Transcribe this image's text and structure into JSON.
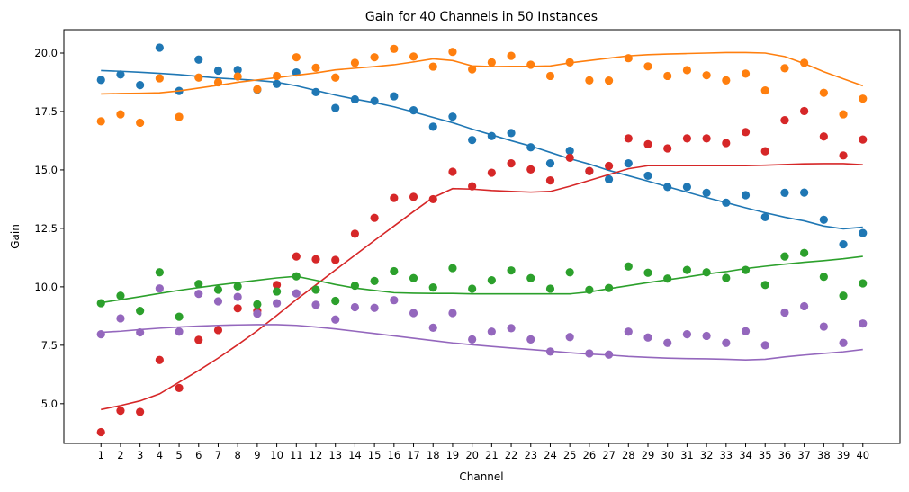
{
  "chart_data": {
    "type": "scatter",
    "title": "Gain for 40 Channels in 50 Instances",
    "xlabel": "Channel",
    "ylabel": "Gain",
    "xlim": [
      -0.9,
      41.9
    ],
    "ylim": [
      3.3,
      21.0
    ],
    "x": [
      1,
      2,
      3,
      4,
      5,
      6,
      7,
      8,
      9,
      10,
      11,
      12,
      13,
      14,
      15,
      16,
      17,
      18,
      19,
      20,
      21,
      22,
      23,
      24,
      25,
      26,
      27,
      28,
      29,
      30,
      31,
      32,
      33,
      34,
      35,
      36,
      37,
      38,
      39,
      40
    ],
    "x_tick_labels": [
      "1",
      "2",
      "3",
      "4",
      "5",
      "6",
      "7",
      "8",
      "9",
      "10",
      "11",
      "12",
      "13",
      "14",
      "15",
      "16",
      "17",
      "18",
      "19",
      "20",
      "21",
      "22",
      "23",
      "24",
      "25",
      "26",
      "27",
      "28",
      "29",
      "30",
      "31",
      "32",
      "33",
      "34",
      "35",
      "36",
      "37",
      "38",
      "39",
      "40"
    ],
    "y_ticks": [
      5.0,
      7.5,
      10.0,
      12.5,
      15.0,
      17.5,
      20.0
    ],
    "y_tick_labels": [
      "5.0",
      "7.5",
      "10.0",
      "12.5",
      "15.0",
      "17.5",
      "20.0"
    ],
    "grid": false,
    "legend": false,
    "series": [
      {
        "color": "#1f77b4",
        "points": [
          18.85,
          19.08,
          18.63,
          20.23,
          18.38,
          19.72,
          19.25,
          19.28,
          18.43,
          18.68,
          19.17,
          18.33,
          17.65,
          18.02,
          17.95,
          18.15,
          17.55,
          16.85,
          17.28,
          16.28,
          16.45,
          16.58,
          15.97,
          15.28,
          15.82,
          14.95,
          14.6,
          15.28,
          14.75,
          14.27,
          14.27,
          14.02,
          13.6,
          13.92,
          12.98,
          14.02,
          14.03,
          12.87,
          11.82,
          12.3
        ],
        "trend": [
          19.25,
          19.22,
          19.18,
          19.13,
          19.08,
          19.0,
          18.93,
          18.88,
          18.83,
          18.75,
          18.6,
          18.4,
          18.2,
          18.03,
          17.88,
          17.7,
          17.48,
          17.25,
          17.02,
          16.75,
          16.5,
          16.25,
          16.02,
          15.75,
          15.48,
          15.25,
          14.98,
          14.75,
          14.52,
          14.28,
          14.05,
          13.82,
          13.6,
          13.38,
          13.17,
          12.98,
          12.82,
          12.6,
          12.48,
          12.55
        ]
      },
      {
        "color": "#ff7f0e",
        "points": [
          17.08,
          17.38,
          17.02,
          18.92,
          17.27,
          18.95,
          18.75,
          19.0,
          18.45,
          19.02,
          19.82,
          19.37,
          18.95,
          19.58,
          19.82,
          20.18,
          19.85,
          19.42,
          20.05,
          19.3,
          19.6,
          19.88,
          19.5,
          19.02,
          19.6,
          18.83,
          18.82,
          19.78,
          19.43,
          19.02,
          19.27,
          19.05,
          18.83,
          19.12,
          18.4,
          19.35,
          19.58,
          18.3,
          17.38,
          18.05
        ],
        "trend": [
          18.25,
          18.27,
          18.28,
          18.3,
          18.38,
          18.5,
          18.62,
          18.75,
          18.85,
          18.95,
          19.05,
          19.15,
          19.28,
          19.35,
          19.42,
          19.5,
          19.62,
          19.75,
          19.68,
          19.45,
          19.42,
          19.43,
          19.43,
          19.45,
          19.58,
          19.68,
          19.78,
          19.88,
          19.93,
          19.96,
          19.98,
          20.0,
          20.02,
          20.02,
          20.0,
          19.85,
          19.55,
          19.2,
          18.9,
          18.6
        ]
      },
      {
        "color": "#d62728",
        "points": [
          3.78,
          4.7,
          4.65,
          6.87,
          5.67,
          7.73,
          8.15,
          9.08,
          8.97,
          10.08,
          11.3,
          11.18,
          11.15,
          12.27,
          12.95,
          13.8,
          13.85,
          13.75,
          14.92,
          14.3,
          14.88,
          15.28,
          15.02,
          14.55,
          15.52,
          14.95,
          15.17,
          16.35,
          16.1,
          15.92,
          16.35,
          16.35,
          16.15,
          16.62,
          15.8,
          17.13,
          17.52,
          16.43,
          15.62,
          16.3
        ],
        "trend": [
          4.75,
          4.92,
          5.12,
          5.42,
          5.92,
          6.42,
          6.95,
          7.52,
          8.12,
          8.78,
          9.45,
          10.08,
          10.72,
          11.35,
          11.98,
          12.6,
          13.22,
          13.82,
          14.2,
          14.18,
          14.12,
          14.08,
          14.05,
          14.08,
          14.3,
          14.55,
          14.8,
          15.05,
          15.18,
          15.18,
          15.18,
          15.18,
          15.18,
          15.18,
          15.2,
          15.23,
          15.26,
          15.27,
          15.27,
          15.22
        ]
      },
      {
        "color": "#2ca02c",
        "points": [
          9.3,
          9.62,
          8.97,
          10.62,
          8.72,
          10.12,
          9.88,
          10.02,
          9.25,
          9.8,
          10.45,
          9.88,
          9.4,
          10.05,
          10.25,
          10.67,
          10.37,
          9.97,
          10.8,
          9.92,
          10.28,
          10.7,
          10.37,
          9.92,
          10.62,
          9.87,
          9.95,
          10.87,
          10.6,
          10.35,
          10.72,
          10.62,
          10.38,
          10.72,
          10.08,
          11.3,
          11.45,
          10.43,
          9.62,
          10.15
        ],
        "trend": [
          9.32,
          9.45,
          9.58,
          9.72,
          9.85,
          9.97,
          10.08,
          10.18,
          10.28,
          10.38,
          10.45,
          10.28,
          10.1,
          9.95,
          9.85,
          9.75,
          9.73,
          9.72,
          9.72,
          9.7,
          9.7,
          9.7,
          9.7,
          9.7,
          9.7,
          9.78,
          9.92,
          10.05,
          10.18,
          10.3,
          10.42,
          10.55,
          10.65,
          10.78,
          10.88,
          10.97,
          11.05,
          11.12,
          11.2,
          11.3
        ]
      },
      {
        "color": "#9467bd",
        "points": [
          7.97,
          8.65,
          8.05,
          9.93,
          8.08,
          9.7,
          9.38,
          9.57,
          8.85,
          9.3,
          9.72,
          9.23,
          8.6,
          9.13,
          9.1,
          9.43,
          8.88,
          8.25,
          8.88,
          7.75,
          8.08,
          8.23,
          7.75,
          7.23,
          7.85,
          7.15,
          7.1,
          8.08,
          7.83,
          7.6,
          7.97,
          7.9,
          7.6,
          8.1,
          7.5,
          8.9,
          9.17,
          8.3,
          7.6,
          8.43
        ],
        "trend": [
          8.05,
          8.1,
          8.17,
          8.23,
          8.28,
          8.32,
          8.35,
          8.37,
          8.38,
          8.38,
          8.35,
          8.28,
          8.2,
          8.1,
          8.0,
          7.9,
          7.8,
          7.7,
          7.6,
          7.52,
          7.45,
          7.38,
          7.32,
          7.25,
          7.18,
          7.12,
          7.08,
          7.02,
          6.98,
          6.95,
          6.93,
          6.92,
          6.9,
          6.87,
          6.9,
          7.0,
          7.08,
          7.15,
          7.22,
          7.32
        ]
      }
    ]
  }
}
